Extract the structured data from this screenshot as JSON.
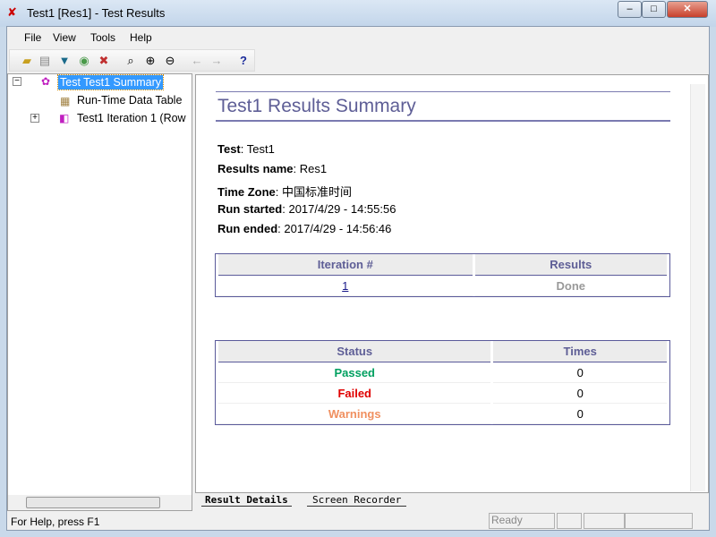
{
  "window": {
    "title": "Test1 [Res1] - Test Results",
    "minimize": "–",
    "maximize": "□",
    "close": "✕"
  },
  "menu": [
    "File",
    "View",
    "Tools",
    "Help"
  ],
  "toolbar": [
    "open-icon",
    "print-icon",
    "filter-icon",
    "find-icon",
    "delete-icon",
    "preview-icon",
    "zoom-in-icon",
    "zoom-out-icon",
    "back-icon",
    "forward-icon",
    "help-icon"
  ],
  "tree": {
    "root": "Test Test1 Summary",
    "children": [
      "Run-Time Data Table",
      "Test1 Iteration 1 (Row"
    ]
  },
  "summary": {
    "heading": "Test1 Results Summary",
    "fields": [
      {
        "label": "Test",
        "value": "Test1"
      },
      {
        "label": "Results name",
        "value": "Res1"
      },
      {
        "label": "Time Zone",
        "value": "中国标准时间"
      },
      {
        "label": "Run started",
        "value": "2017/4/29 - 14:55:56"
      },
      {
        "label": "Run ended",
        "value": "2017/4/29 - 14:56:46"
      }
    ],
    "iterations": {
      "headers": [
        "Iteration #",
        "Results"
      ],
      "rows": [
        {
          "iteration": "1",
          "result": "Done"
        }
      ]
    },
    "status": {
      "headers": [
        "Status",
        "Times"
      ],
      "rows": [
        {
          "status": "Passed",
          "times": "0",
          "color": "#00a060"
        },
        {
          "status": "Failed",
          "times": "0",
          "color": "#e00000"
        },
        {
          "status": "Warnings",
          "times": "0",
          "color": "#f09060"
        }
      ]
    }
  },
  "tabs": [
    "Result Details",
    "Screen Recorder"
  ],
  "statusbar": {
    "help": "For Help, press F1",
    "state": "Ready"
  }
}
